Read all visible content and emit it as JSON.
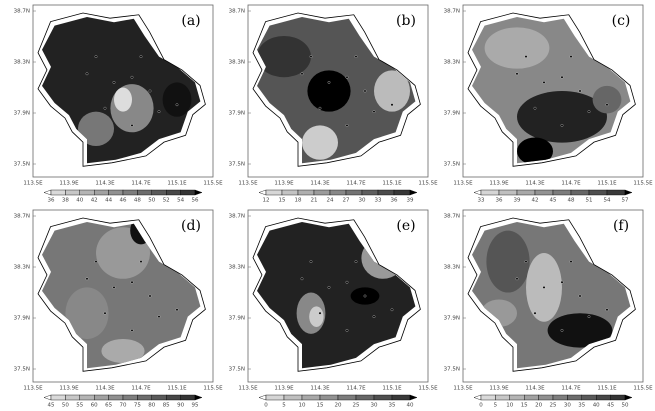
{
  "axes": {
    "lat_labels": [
      "38.7N",
      "38.3N",
      "37.9N",
      "37.5N"
    ],
    "lon_labels": [
      "113.5E",
      "113.9E",
      "114.3E",
      "114.7E",
      "115.1E",
      "115.5E"
    ]
  },
  "panels": [
    {
      "label": "(a)",
      "colorbar_ticks": [
        36,
        38,
        40,
        42,
        44,
        46,
        48,
        50,
        52,
        54,
        56
      ]
    },
    {
      "label": "(b)",
      "colorbar_ticks": [
        12,
        15,
        18,
        21,
        24,
        27,
        30,
        33,
        36,
        39
      ]
    },
    {
      "label": "(c)",
      "colorbar_ticks": [
        33,
        36,
        39,
        42,
        45,
        48,
        51,
        54,
        57
      ]
    },
    {
      "label": "(d)",
      "colorbar_ticks": [
        45,
        50,
        55,
        60,
        65,
        70,
        75,
        80,
        85,
        90,
        95
      ]
    },
    {
      "label": "(e)",
      "colorbar_ticks": [
        0,
        5,
        10,
        15,
        20,
        25,
        30,
        35,
        40
      ]
    },
    {
      "label": "(f)",
      "colorbar_ticks": [
        0,
        5,
        10,
        15,
        20,
        25,
        30,
        35,
        40,
        45,
        50
      ]
    }
  ]
}
